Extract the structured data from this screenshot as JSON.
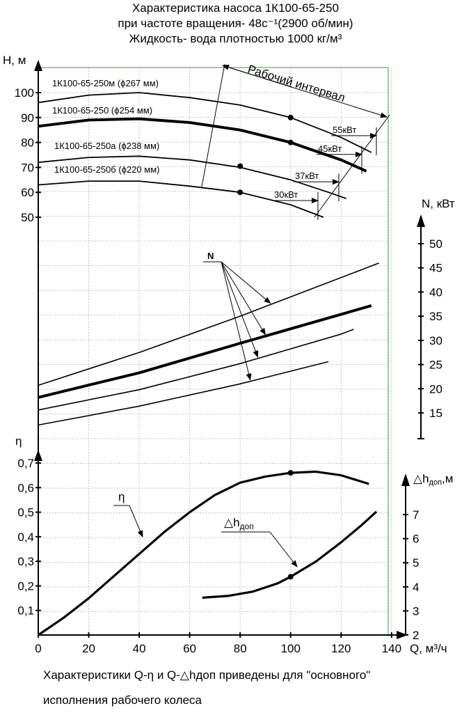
{
  "titles": {
    "line1": "Характеристика насоса 1К100-65-250",
    "line2": "при частоте вращения- 48с⁻¹(2900 об/мин)",
    "line3": "Жидкость- вода плотностью 1000 кг/м³"
  },
  "footer": {
    "line1": "Характеристики Q-η и Q-△hдоп приведены для \"основного\"",
    "line2": "исполнения рабочего колеса"
  },
  "chart_data": {
    "type": "line",
    "x_axis": {
      "label": "Q, м³/ч",
      "range": [
        0,
        145
      ],
      "ticks": [
        0,
        20,
        40,
        60,
        80,
        100,
        120,
        140
      ]
    },
    "head_axis": {
      "label": "H, м",
      "ticks": [
        50,
        60,
        70,
        80,
        90,
        100
      ],
      "tick_labels": [
        "50",
        "60",
        "70",
        "80",
        "90",
        "100"
      ],
      "range": [
        40,
        110
      ]
    },
    "power_axis": {
      "label": "N, кВт",
      "ticks": [
        15,
        20,
        25,
        30,
        35,
        40,
        45,
        50
      ],
      "tick_labels": [
        "15",
        "20",
        "25",
        "30",
        "35",
        "40",
        "45",
        "50"
      ],
      "range": [
        10,
        55
      ]
    },
    "efficiency_axis": {
      "label": "η",
      "ticks": [
        0.1,
        0.2,
        0.3,
        0.4,
        0.5,
        0.6,
        0.7
      ],
      "tick_labels": [
        "0,1",
        "0,2",
        "0,3",
        "0,4",
        "0,5",
        "0,6",
        "0,7"
      ],
      "range": [
        0,
        0.8
      ]
    },
    "npsh_axis": {
      "label": "△hдоп,м",
      "ticks": [
        2,
        3,
        4,
        5,
        6,
        7
      ],
      "tick_labels": [
        "2",
        "3",
        "4",
        "5",
        "6",
        "7"
      ],
      "range": [
        2,
        9
      ]
    },
    "head_curves": [
      {
        "name": "1К100-65-250м (ϕ267 мм)",
        "power_label": "55кВт",
        "bold": false,
        "points": [
          [
            0,
            96
          ],
          [
            20,
            99
          ],
          [
            40,
            100
          ],
          [
            60,
            98
          ],
          [
            80,
            95
          ],
          [
            100,
            90
          ],
          [
            120,
            82
          ],
          [
            132,
            76
          ]
        ]
      },
      {
        "name": "1К100-65-250 (ϕ254 мм)",
        "power_label": "45кВт",
        "bold": true,
        "points": [
          [
            0,
            86.5
          ],
          [
            20,
            89
          ],
          [
            40,
            89.5
          ],
          [
            60,
            88
          ],
          [
            80,
            85
          ],
          [
            100,
            80
          ],
          [
            120,
            73
          ],
          [
            130,
            68.5
          ]
        ]
      },
      {
        "name": "1К100-65-250а (ϕ238 мм)",
        "power_label": "37кВт",
        "bold": false,
        "points": [
          [
            0,
            72
          ],
          [
            20,
            74
          ],
          [
            40,
            74.5
          ],
          [
            60,
            73
          ],
          [
            80,
            70
          ],
          [
            100,
            65
          ],
          [
            115,
            60
          ],
          [
            122,
            57.5
          ]
        ]
      },
      {
        "name": "1К100-65-250б (ϕ220 мм)",
        "power_label": "30кВт",
        "bold": false,
        "points": [
          [
            0,
            63
          ],
          [
            20,
            64.5
          ],
          [
            40,
            64.5
          ],
          [
            60,
            62.5
          ],
          [
            80,
            60
          ],
          [
            100,
            55
          ],
          [
            113,
            50
          ]
        ]
      }
    ],
    "head_marked_points": [
      [
        100,
        90
      ],
      [
        100,
        80
      ],
      [
        80,
        70.5
      ],
      [
        80,
        60
      ]
    ],
    "working_range_label": "Рабочий интервал",
    "power_curves_label": "N",
    "power_curves": [
      {
        "bold": false,
        "points": [
          [
            0,
            20.7
          ],
          [
            40,
            27.5
          ],
          [
            80,
            35
          ],
          [
            120,
            43
          ],
          [
            135,
            46
          ]
        ]
      },
      {
        "bold": true,
        "points": [
          [
            0,
            18.2
          ],
          [
            40,
            23.3
          ],
          [
            80,
            29.4
          ],
          [
            120,
            35.4
          ],
          [
            132,
            37.2
          ]
        ]
      },
      {
        "bold": false,
        "points": [
          [
            0,
            15.6
          ],
          [
            40,
            19.8
          ],
          [
            80,
            25.2
          ],
          [
            120,
            31.3
          ],
          [
            125,
            32.3
          ]
        ]
      },
      {
        "bold": false,
        "points": [
          [
            0,
            12.5
          ],
          [
            40,
            16.4
          ],
          [
            80,
            21
          ],
          [
            115,
            25.6
          ]
        ]
      }
    ],
    "efficiency_curve": {
      "label": "η",
      "points": [
        [
          0,
          0
        ],
        [
          10,
          0.07
        ],
        [
          20,
          0.15
        ],
        [
          30,
          0.24
        ],
        [
          40,
          0.33
        ],
        [
          50,
          0.42
        ],
        [
          60,
          0.5
        ],
        [
          70,
          0.57
        ],
        [
          80,
          0.62
        ],
        [
          90,
          0.645
        ],
        [
          100,
          0.66
        ],
        [
          110,
          0.665
        ],
        [
          120,
          0.65
        ],
        [
          131,
          0.615
        ]
      ]
    },
    "efficiency_marked_point": [
      100,
      0.66
    ],
    "npsh_curve": {
      "label": "△hдоп",
      "points": [
        [
          65,
          3.55
        ],
        [
          75,
          3.62
        ],
        [
          85,
          3.8
        ],
        [
          95,
          4.15
        ],
        [
          100,
          4.42
        ],
        [
          110,
          5.05
        ],
        [
          120,
          5.85
        ],
        [
          128,
          6.55
        ],
        [
          134,
          7.12
        ]
      ]
    },
    "npsh_marked_point": [
      100,
      4.42
    ],
    "grid": true
  }
}
